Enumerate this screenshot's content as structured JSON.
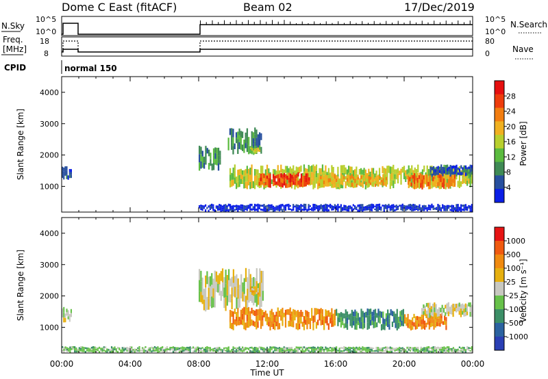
{
  "header": {
    "title": "Dome C East (fitACF)",
    "beam": "Beam 02",
    "date": "17/Dec/2019"
  },
  "noise_panel": {
    "left_label": "N.Sky",
    "right_label": "N.Search",
    "left_ticks": [
      "10^5",
      "10^0"
    ],
    "right_ticks": [
      "10^5",
      "10^0"
    ]
  },
  "freq_panel": {
    "left_label_1": "Freq.",
    "left_label_2": "[MHz]",
    "right_label": "Nave",
    "left_ticks": [
      "18",
      "8"
    ],
    "right_ticks": [
      "80",
      "0"
    ]
  },
  "cpid_panel": {
    "label": "CPID",
    "mode": "normal 150"
  },
  "x_axis": {
    "label": "Time UT",
    "ticks": [
      "00:00",
      "04:00",
      "08:00",
      "12:00",
      "16:00",
      "20:00",
      "00:00"
    ]
  },
  "power_panel": {
    "ylabel": "Slant Range [km]",
    "yticks": [
      "4000",
      "3000",
      "2000",
      "1000"
    ],
    "colorbar_label": "Power [dB]",
    "colorbar_ticks": [
      "28",
      "24",
      "20",
      "16",
      "12",
      "8",
      "4"
    ],
    "colors": [
      "#0a1ee6",
      "#274f9e",
      "#3f8a55",
      "#5bbb3f",
      "#b8cf2e",
      "#f0b020",
      "#f27d10",
      "#ee3c0c",
      "#e60f0f"
    ]
  },
  "velocity_panel": {
    "ylabel": "Slant Range [km]",
    "yticks": [
      "4000",
      "3000",
      "2000",
      "1000"
    ],
    "colorbar_label": "Velocity [m s⁻¹]",
    "colorbar_ticks": [
      "1000",
      "500",
      "100",
      "25",
      "-25",
      "-100",
      "-500",
      "-1000"
    ],
    "colors": [
      "#2a3fb4",
      "#2b62a0",
      "#3c8f67",
      "#67c14a",
      "#c8c8c0",
      "#e6b010",
      "#f08a10",
      "#f05a10",
      "#e61414"
    ]
  },
  "chart_data": {
    "type": "heatmap",
    "x_range_hours": [
      0,
      24
    ],
    "y_range_km": [
      180,
      4500
    ],
    "grid": false,
    "power_regions": [
      {
        "t0": 0.0,
        "t1": 0.6,
        "r0": 1150,
        "r1": 1650,
        "level": 1
      },
      {
        "t0": 8.0,
        "t1": 9.3,
        "r0": 1500,
        "r1": 2300,
        "level": 2
      },
      {
        "t0": 9.7,
        "t1": 11.7,
        "r0": 2000,
        "r1": 2900,
        "level": 2
      },
      {
        "t0": 11.0,
        "t1": 11.6,
        "r0": 2000,
        "r1": 2300,
        "level": 4
      },
      {
        "t0": 9.8,
        "t1": 24.0,
        "r0": 900,
        "r1": 1700,
        "level": 4
      },
      {
        "t0": 11.5,
        "t1": 14.5,
        "r0": 950,
        "r1": 1450,
        "level": 7
      },
      {
        "t0": 15.0,
        "t1": 19.0,
        "r0": 950,
        "r1": 1400,
        "level": 5
      },
      {
        "t0": 20.2,
        "t1": 23.0,
        "r0": 900,
        "r1": 1450,
        "level": 6
      },
      {
        "t0": 21.5,
        "t1": 24.0,
        "r0": 1300,
        "r1": 1700,
        "level": 1
      },
      {
        "t0": 8.0,
        "t1": 24.0,
        "r0": 180,
        "r1": 450,
        "level": 0
      }
    ],
    "velocity_regions": [
      {
        "t0": 0.0,
        "t1": 0.6,
        "r0": 1150,
        "r1": 1650,
        "level": 4
      },
      {
        "t0": 8.0,
        "t1": 11.8,
        "r0": 1500,
        "r1": 2900,
        "level": 4
      },
      {
        "t0": 11.0,
        "t1": 11.6,
        "r0": 2000,
        "r1": 2300,
        "level": 5
      },
      {
        "t0": 9.8,
        "t1": 16.0,
        "r0": 900,
        "r1": 1650,
        "level": 6
      },
      {
        "t0": 16.0,
        "t1": 20.0,
        "r0": 900,
        "r1": 1600,
        "level": 2
      },
      {
        "t0": 20.0,
        "t1": 22.5,
        "r0": 900,
        "r1": 1450,
        "level": 6
      },
      {
        "t0": 21.0,
        "t1": 24.0,
        "r0": 1300,
        "r1": 1800,
        "level": 4
      },
      {
        "t0": 0.0,
        "t1": 24.0,
        "r0": 180,
        "r1": 400,
        "level": 3
      }
    ]
  }
}
